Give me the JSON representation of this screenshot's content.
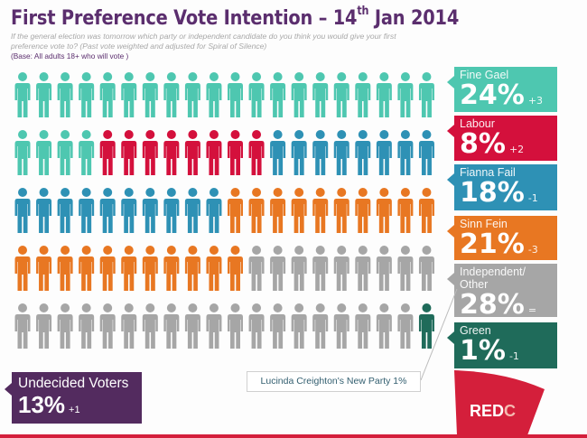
{
  "header": {
    "title_main": "First Preference Vote Intention – 14",
    "title_sup": "th",
    "title_end": " Jan 2014",
    "question": "If the general election was tomorrow which party or independent candidate do you think you would give your first preference vote to?  (Past vote weighted and adjusted for Spiral of Silence)",
    "base": "(Base: All adults 18+ who will vote )"
  },
  "chart_data": {
    "type": "pictogram",
    "title": "First Preference Vote Intention – 14th Jan 2014",
    "unit": "%",
    "figures_total": 100,
    "figures_per_row": 20,
    "series": [
      {
        "name": "Fine Gael",
        "value": 24,
        "change": "+3",
        "color": "#4ec7b0"
      },
      {
        "name": "Labour",
        "value": 8,
        "change": "+2",
        "color": "#d4103c"
      },
      {
        "name": "Fianna Fail",
        "value": 18,
        "change": "-1",
        "color": "#2e91b5"
      },
      {
        "name": "Sinn Fein",
        "value": 21,
        "change": "-3",
        "color": "#e87722"
      },
      {
        "name": "Independent/ Other",
        "name_line1": "Independent/",
        "name_line2": "Other",
        "value": 28,
        "change": "=",
        "color": "#a6a6a6"
      },
      {
        "name": "Green",
        "value": 1,
        "change": "-1",
        "color": "#1f6b5a"
      }
    ]
  },
  "undecided": {
    "label": "Undecided Voters",
    "value": "13%",
    "change": "+1",
    "color": "#532b5f"
  },
  "callout": {
    "text": "Lucinda Creighton's New Party 1%"
  },
  "logo": {
    "text_main": "RED",
    "text_end": "C",
    "color": "#d41f3b"
  }
}
